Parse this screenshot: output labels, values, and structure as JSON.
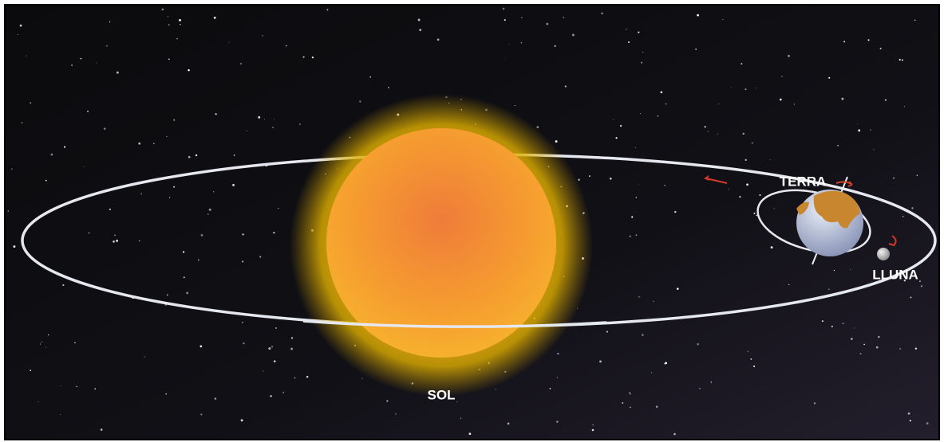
{
  "labels": {
    "sun": "SOL",
    "earth": "TERRA",
    "moon": "LLUNA"
  }
}
